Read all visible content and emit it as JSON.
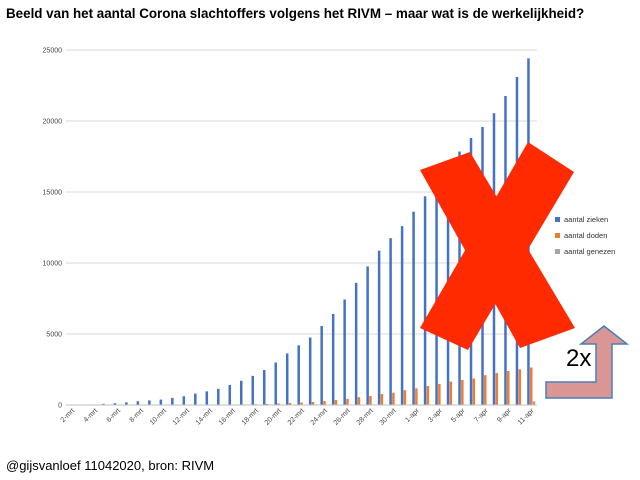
{
  "page": {
    "title": "Beeld van het aantal Corona slachtoffers volgens het RIVM – maar wat is de werkelijkheid?",
    "footer": "@gijsvanloef 11042020, bron: RIVM",
    "multiplier_label": "2x"
  },
  "colors": {
    "zieken": "#4472C4",
    "doden": "#ED7D31",
    "genezen": "#A5A5A5",
    "cross": "#FF2A00",
    "arrow_fill": "#D99694",
    "arrow_stroke": "#4A7EBB",
    "grid": "#D9D9D9"
  },
  "chart_data": {
    "type": "bar",
    "title": "",
    "xlabel": "",
    "ylabel": "",
    "ylim": [
      0,
      25000
    ],
    "yticks": [
      0,
      5000,
      10000,
      15000,
      20000,
      25000
    ],
    "grid": true,
    "legend_position": "right",
    "categories": [
      "2-mrt",
      "3-mrt",
      "4-mrt",
      "5-mrt",
      "6-mrt",
      "7-mrt",
      "8-mrt",
      "9-mrt",
      "10-mrt",
      "11-mrt",
      "12-mrt",
      "13-mrt",
      "14-mrt",
      "15-mrt",
      "16-mrt",
      "17-mrt",
      "18-mrt",
      "19-mrt",
      "20-mrt",
      "21-mrt",
      "22-mrt",
      "23-mrt",
      "24-mrt",
      "25-mrt",
      "26-mrt",
      "27-mrt",
      "28-mrt",
      "29-mrt",
      "30-mrt",
      "31-mrt",
      "1-apr",
      "2-apr",
      "3-apr",
      "4-apr",
      "5-apr",
      "6-apr",
      "7-apr",
      "8-apr",
      "9-apr",
      "10-apr",
      "11-apr"
    ],
    "tick_labels_shown": [
      "2-mrt",
      "4-mrt",
      "6-mrt",
      "8-mrt",
      "10-mrt",
      "12-mrt",
      "14-mrt",
      "16-mrt",
      "18-mrt",
      "20-mrt",
      "22-mrt",
      "24-mrt",
      "26-mrt",
      "28-mrt",
      "30-mrt",
      "1-apr",
      "3-apr",
      "5-apr",
      "7-apr",
      "9-apr",
      "11-apr"
    ],
    "series": [
      {
        "name": "aantal zieken",
        "values": [
          18,
          24,
          38,
          82,
          128,
          188,
          265,
          321,
          382,
          503,
          614,
          804,
          959,
          1135,
          1413,
          1705,
          2051,
          2460,
          2994,
          3631,
          4204,
          4749,
          5560,
          6412,
          7431,
          8603,
          9762,
          10866,
          11750,
          12595,
          13614,
          14697,
          15723,
          16627,
          17851,
          18803,
          19580,
          20549,
          21762,
          23097,
          24413
        ]
      },
      {
        "name": "aantal doden",
        "values": [
          0,
          0,
          0,
          0,
          1,
          1,
          3,
          3,
          4,
          5,
          5,
          10,
          12,
          20,
          24,
          43,
          58,
          76,
          106,
          136,
          179,
          213,
          276,
          356,
          434,
          546,
          639,
          771,
          864,
          1039,
          1173,
          1339,
          1487,
          1651,
          1766,
          1867,
          2101,
          2248,
          2396,
          2511,
          2643
        ]
      },
      {
        "name": "aantal genezen",
        "values": [
          0,
          0,
          0,
          0,
          0,
          0,
          0,
          0,
          0,
          0,
          0,
          0,
          0,
          0,
          0,
          0,
          0,
          0,
          0,
          0,
          0,
          0,
          0,
          0,
          0,
          0,
          0,
          0,
          0,
          0,
          0,
          0,
          0,
          0,
          0,
          0,
          0,
          0,
          0,
          0,
          250
        ]
      }
    ]
  }
}
